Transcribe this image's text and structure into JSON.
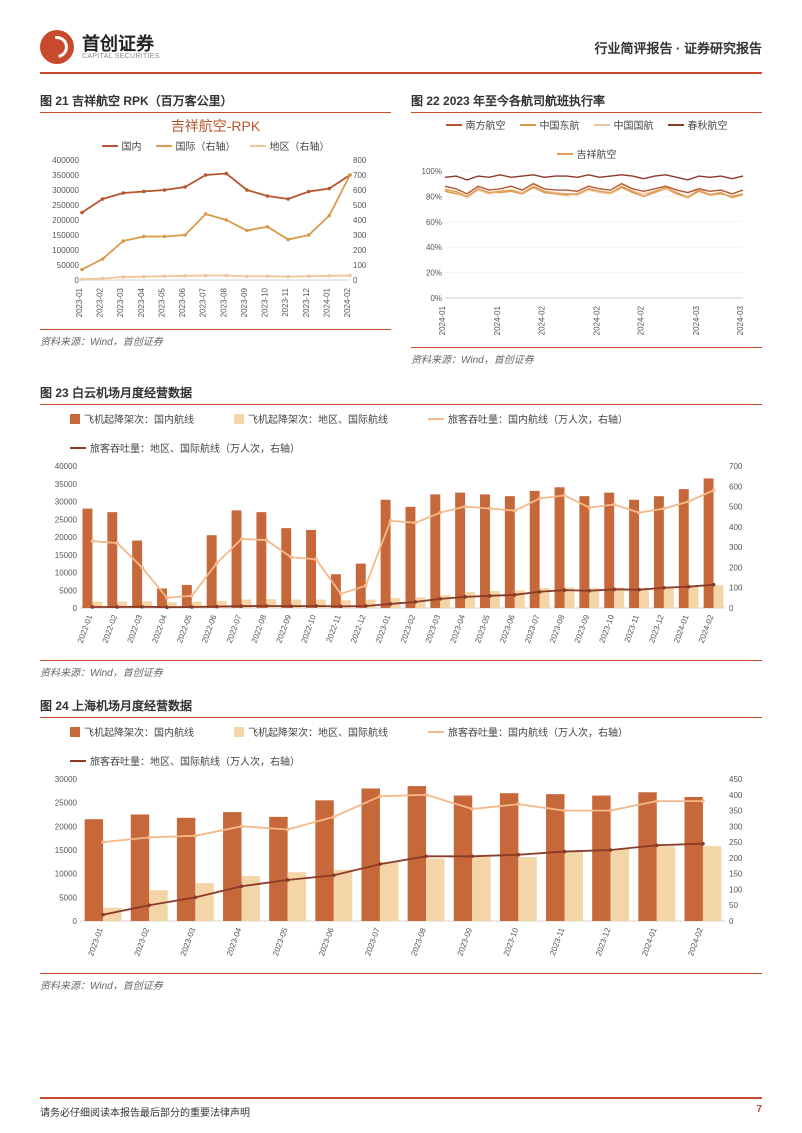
{
  "header": {
    "logo_cn": "首创证券",
    "logo_en": "CAPITAL SECURITIES",
    "right_text": "行业简评报告 · 证券研究报告"
  },
  "footer": {
    "disclaimer": "请务必仔细阅读本报告最后部分的重要法律声明",
    "page": "7"
  },
  "charts": {
    "c21": {
      "type": "line-dual-axis",
      "fig_label": "图 21 吉祥航空 RPK（百万客公里）",
      "title": "吉祥航空-RPK",
      "title_color": "#b8552e",
      "legend": [
        {
          "label": "国内",
          "color": "#b8552e"
        },
        {
          "label": "国际（右轴）",
          "color": "#d99a4a"
        },
        {
          "label": "地区（右轴）",
          "color": "#f2c49a"
        }
      ],
      "x_labels": [
        "2023-01",
        "2023-02",
        "2023-03",
        "2023-04",
        "2023-05",
        "2023-06",
        "2023-07",
        "2023-08",
        "2023-09",
        "2023-10",
        "2023-11",
        "2023-12",
        "2024-01",
        "2024-02"
      ],
      "y_left": {
        "min": 0,
        "max": 400000,
        "step": 50000
      },
      "y_right": {
        "min": 0,
        "max": 800,
        "step": 100
      },
      "series": {
        "domestic": {
          "color": "#b8552e",
          "values": [
            225000,
            270000,
            290000,
            295000,
            300000,
            310000,
            350000,
            355000,
            300000,
            280000,
            270000,
            295000,
            305000,
            350000
          ]
        },
        "intl_r": {
          "color": "#d99a4a",
          "values": [
            70,
            140,
            260,
            290,
            290,
            300,
            440,
            400,
            330,
            355,
            270,
            300,
            430,
            700
          ]
        },
        "region_r": {
          "color": "#f2c49a",
          "values": [
            5,
            10,
            20,
            22,
            25,
            28,
            30,
            30,
            25,
            25,
            22,
            25,
            28,
            30
          ]
        }
      },
      "source": "资料来源：Wind，首创证券",
      "background_color": "#ffffff",
      "axis_color": "#aaaaaa",
      "tick_fontsize": 8
    },
    "c22": {
      "type": "multi-line-pct",
      "fig_label": "图 22 2023 年至今各航司航班执行率",
      "legend": [
        {
          "label": "南方航空",
          "color": "#b8552e"
        },
        {
          "label": "中国东航",
          "color": "#d99a4a"
        },
        {
          "label": "中国国航",
          "color": "#f2c49a"
        },
        {
          "label": "春秋航空",
          "color": "#8a3a28"
        },
        {
          "label": "吉祥航空",
          "color": "#e2a05a"
        }
      ],
      "x_labels": [
        "2024-01",
        "2024-01",
        "2024-02",
        "2024-02",
        "2024-02",
        "2024-03",
        "2024-03"
      ],
      "y": {
        "min": 0,
        "max": 100,
        "step": 20,
        "suffix": "%"
      },
      "series": {
        "csair": {
          "color": "#b8552e",
          "values": [
            88,
            86,
            82,
            88,
            85,
            86,
            88,
            85,
            90,
            86,
            85,
            85,
            84,
            88,
            86,
            85,
            90,
            86,
            84,
            86,
            88,
            85,
            83,
            86,
            84,
            85,
            82,
            85
          ]
        },
        "ceair": {
          "color": "#d99a4a",
          "values": [
            84,
            82,
            80,
            86,
            83,
            83,
            84,
            82,
            87,
            83,
            82,
            81,
            82,
            86,
            84,
            82,
            87,
            83,
            80,
            83,
            86,
            82,
            79,
            84,
            81,
            82,
            80,
            82
          ]
        },
        "airchina": {
          "color": "#f2c49a",
          "values": [
            86,
            83,
            79,
            85,
            82,
            84,
            85,
            83,
            88,
            84,
            83,
            82,
            81,
            85,
            83,
            82,
            88,
            84,
            82,
            84,
            86,
            83,
            80,
            85,
            82,
            83,
            79,
            81
          ]
        },
        "spring": {
          "color": "#8a3a28",
          "values": [
            95,
            96,
            93,
            96,
            95,
            97,
            95,
            96,
            97,
            95,
            96,
            96,
            95,
            97,
            95,
            96,
            97,
            96,
            94,
            96,
            97,
            95,
            93,
            96,
            95,
            96,
            94,
            96
          ]
        },
        "juneyao": {
          "color": "#e2a05a",
          "values": [
            85,
            84,
            80,
            86,
            83,
            84,
            85,
            82,
            88,
            84,
            82,
            82,
            82,
            86,
            84,
            83,
            88,
            84,
            80,
            84,
            87,
            83,
            79,
            85,
            81,
            83,
            79,
            82
          ]
        }
      },
      "source": "资料来源：Wind，首创证券",
      "background_color": "#ffffff"
    },
    "c23": {
      "type": "bar-line-dual",
      "fig_label": "图 23 白云机场月度经营数据",
      "legend": [
        {
          "label": "飞机起降架次：国内航线",
          "color": "#c6683a",
          "kind": "bar"
        },
        {
          "label": "飞机起降架次：地区、国际航线",
          "color": "#f4d5a8",
          "kind": "bar"
        },
        {
          "label": "旅客吞吐量：国内航线（万人次，右轴）",
          "color": "#f5b88a",
          "kind": "line"
        },
        {
          "label": "旅客吞吐量：地区、国际航线（万人次，右轴）",
          "color": "#8a3a28",
          "kind": "line"
        }
      ],
      "x_labels": [
        "2022-01",
        "2022-02",
        "2022-03",
        "2022-04",
        "2022-05",
        "2022-06",
        "2022-07",
        "2022-08",
        "2022-09",
        "2022-10",
        "2022-11",
        "2022-12",
        "2023-01",
        "2023-02",
        "2023-03",
        "2023-04",
        "2023-05",
        "2023-06",
        "2023-07",
        "2023-08",
        "2023-09",
        "2023-10",
        "2023-11",
        "2023-12",
        "2024-01",
        "2024-02"
      ],
      "y_left": {
        "min": 0,
        "max": 40000,
        "step": 5000
      },
      "y_right": {
        "min": 0,
        "max": 700,
        "step": 100
      },
      "series": {
        "bar_dom": {
          "color": "#c6683a",
          "values": [
            28000,
            27000,
            19000,
            5500,
            6500,
            20500,
            27500,
            27000,
            22500,
            22000,
            9500,
            12500,
            30500,
            28500,
            32000,
            32500,
            32000,
            31500,
            33000,
            34000,
            31500,
            32500,
            30500,
            31500,
            33500,
            36500
          ]
        },
        "bar_intl": {
          "color": "#f4d5a8",
          "values": [
            1800,
            1800,
            1900,
            1600,
            1800,
            2000,
            2400,
            2500,
            2400,
            2400,
            2200,
            2400,
            2800,
            3000,
            3600,
            4500,
            4800,
            5000,
            5600,
            5800,
            5600,
            5800,
            5700,
            5900,
            6200,
            6400
          ]
        },
        "line_dom_r": {
          "color": "#f5b88a",
          "values": [
            330,
            320,
            200,
            50,
            60,
            220,
            340,
            335,
            250,
            240,
            70,
            110,
            430,
            420,
            470,
            500,
            490,
            480,
            540,
            555,
            495,
            510,
            470,
            490,
            525,
            580
          ]
        },
        "line_intl_r": {
          "color": "#8a3a28",
          "values": [
            5,
            5,
            6,
            4,
            5,
            7,
            9,
            10,
            9,
            10,
            8,
            10,
            20,
            30,
            45,
            55,
            60,
            65,
            80,
            88,
            85,
            92,
            90,
            100,
            105,
            115
          ]
        }
      },
      "source": "资料来源：Wind，首创证券",
      "bar_width": 0.4
    },
    "c24": {
      "type": "bar-line-dual",
      "fig_label": "图 24 上海机场月度经营数据",
      "legend": [
        {
          "label": "飞机起降架次：国内航线",
          "color": "#c6683a",
          "kind": "bar"
        },
        {
          "label": "飞机起降架次：地区、国际航线",
          "color": "#f4d5a8",
          "kind": "bar"
        },
        {
          "label": "旅客吞吐量：国内航线（万人次，右轴）",
          "color": "#f5b88a",
          "kind": "line"
        },
        {
          "label": "旅客吞吐量：地区、国际航线（万人次，右轴）",
          "color": "#8a3a28",
          "kind": "line"
        }
      ],
      "x_labels": [
        "2023-01",
        "2023-02",
        "2023-03",
        "2023-04",
        "2023-05",
        "2023-06",
        "2023-07",
        "2023-08",
        "2023-09",
        "2023-10",
        "2023-11",
        "2023-12",
        "2024-01",
        "2024-02"
      ],
      "y_left": {
        "min": 0,
        "max": 30000,
        "step": 5000
      },
      "y_right": {
        "min": 0,
        "max": 450,
        "step": 50
      },
      "series": {
        "bar_dom": {
          "color": "#c6683a",
          "values": [
            21500,
            22500,
            21800,
            23000,
            22000,
            25500,
            28000,
            28500,
            26500,
            27000,
            26800,
            26500,
            27200,
            26200
          ]
        },
        "bar_intl": {
          "color": "#f4d5a8",
          "values": [
            2800,
            6500,
            8000,
            9500,
            10300,
            10800,
            12500,
            13200,
            13500,
            13500,
            14800,
            15200,
            15800,
            15800
          ]
        },
        "line_dom_r": {
          "color": "#f5b88a",
          "values": [
            250,
            265,
            270,
            300,
            290,
            330,
            395,
            400,
            355,
            370,
            350,
            350,
            380,
            380
          ]
        },
        "line_intl_r": {
          "color": "#8a3a28",
          "values": [
            20,
            50,
            75,
            110,
            130,
            145,
            180,
            205,
            205,
            210,
            220,
            225,
            240,
            245
          ]
        }
      },
      "source": "资料来源：Wind，首创证券",
      "bar_width": 0.4
    }
  }
}
